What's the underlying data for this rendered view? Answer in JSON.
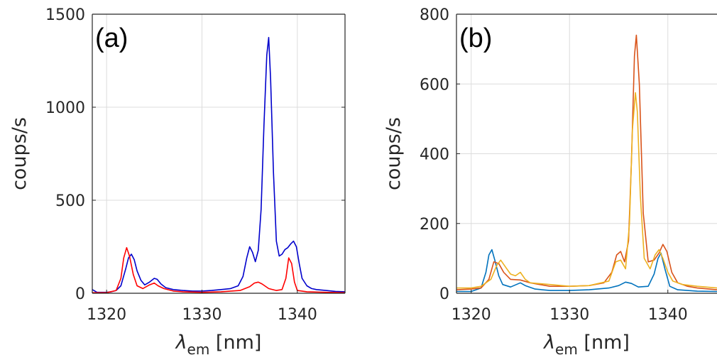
{
  "chart_data": [
    {
      "type": "line",
      "panel_label": "(a)",
      "xlabel_symbol": "λ",
      "xlabel_subscript": "em",
      "xlabel_unit": "[nm]",
      "ylabel": "coups/s",
      "xlim": [
        1318.5,
        1345
      ],
      "ylim": [
        0,
        1500
      ],
      "xticks": [
        1320,
        1330,
        1340
      ],
      "yticks": [
        0,
        500,
        1000,
        1500
      ],
      "grid": true,
      "series": [
        {
          "color": "#0000cc",
          "x": [
            1318.5,
            1319,
            1320,
            1320.5,
            1321,
            1321.5,
            1322,
            1322.3,
            1322.6,
            1322.9,
            1323.2,
            1323.6,
            1324,
            1324.5,
            1325,
            1325.3,
            1325.7,
            1326.2,
            1327,
            1328,
            1329,
            1330,
            1331,
            1332,
            1333,
            1333.8,
            1334.3,
            1334.7,
            1335,
            1335.3,
            1335.6,
            1335.9,
            1336.2,
            1336.5,
            1336.8,
            1337,
            1337.2,
            1337.5,
            1337.8,
            1338.1,
            1338.4,
            1338.7,
            1339,
            1339.3,
            1339.6,
            1339.9,
            1340.2,
            1340.5,
            1341,
            1341.5,
            1342,
            1343,
            1344,
            1345
          ],
          "y": [
            20,
            5,
            5,
            8,
            15,
            40,
            130,
            190,
            210,
            180,
            120,
            70,
            45,
            60,
            80,
            75,
            50,
            30,
            20,
            15,
            12,
            12,
            15,
            20,
            25,
            40,
            90,
            190,
            250,
            220,
            170,
            230,
            450,
            900,
            1280,
            1375,
            1150,
            650,
            280,
            200,
            210,
            235,
            245,
            265,
            280,
            250,
            160,
            80,
            40,
            25,
            20,
            15,
            10,
            8
          ]
        },
        {
          "color": "#ff0000",
          "x": [
            1318.5,
            1320,
            1321,
            1321.5,
            1321.8,
            1322.1,
            1322.4,
            1322.8,
            1323.2,
            1323.8,
            1324.5,
            1325,
            1325.4,
            1326,
            1327,
            1328,
            1330,
            1332,
            1334,
            1335,
            1335.5,
            1335.9,
            1336.3,
            1337,
            1337.8,
            1338.4,
            1338.8,
            1339.1,
            1339.4,
            1339.7,
            1340,
            1341,
            1343,
            1345
          ],
          "y": [
            3,
            3,
            15,
            80,
            190,
            245,
            200,
            100,
            40,
            25,
            45,
            55,
            40,
            25,
            12,
            8,
            5,
            8,
            15,
            35,
            55,
            60,
            50,
            25,
            15,
            20,
            80,
            190,
            160,
            60,
            15,
            8,
            5,
            3
          ]
        }
      ]
    },
    {
      "type": "line",
      "panel_label": "(b)",
      "xlabel_symbol": "λ",
      "xlabel_subscript": "em",
      "xlabel_unit": "[nm]",
      "ylabel": "coups/s",
      "xlim": [
        1318.5,
        1345
      ],
      "ylim": [
        0,
        800
      ],
      "xticks": [
        1320,
        1330,
        1340
      ],
      "yticks": [
        0,
        200,
        400,
        600,
        800
      ],
      "grid": true,
      "series": [
        {
          "color": "#0072bd",
          "x": [
            1318.5,
            1320,
            1321,
            1321.5,
            1321.8,
            1322.1,
            1322.4,
            1322.8,
            1323.2,
            1324,
            1325,
            1325.5,
            1326.5,
            1328,
            1330,
            1332,
            1334,
            1335,
            1335.7,
            1336.3,
            1337,
            1338,
            1338.6,
            1339,
            1339.3,
            1339.7,
            1340.2,
            1341,
            1343,
            1345
          ],
          "y": [
            5,
            5,
            15,
            60,
            110,
            125,
            95,
            50,
            25,
            18,
            30,
            22,
            12,
            8,
            8,
            10,
            15,
            22,
            32,
            28,
            18,
            20,
            55,
            100,
            115,
            70,
            20,
            10,
            6,
            5
          ]
        },
        {
          "color": "#d95319",
          "x": [
            1318.5,
            1320,
            1321,
            1321.8,
            1322.3,
            1322.8,
            1323.3,
            1324,
            1325,
            1326,
            1328,
            1330,
            1332,
            1333.5,
            1334.3,
            1334.8,
            1335.2,
            1335.6,
            1336,
            1336.3,
            1336.6,
            1336.8,
            1337.1,
            1337.5,
            1338,
            1338.6,
            1339.1,
            1339.5,
            1339.9,
            1340.4,
            1341,
            1342,
            1343,
            1345
          ],
          "y": [
            10,
            12,
            15,
            40,
            90,
            85,
            60,
            40,
            38,
            30,
            20,
            20,
            22,
            30,
            60,
            110,
            120,
            90,
            150,
            380,
            680,
            740,
            600,
            230,
            90,
            95,
            115,
            140,
            120,
            60,
            30,
            20,
            15,
            10
          ]
        },
        {
          "color": "#edb120",
          "x": [
            1318.5,
            1320,
            1321,
            1322,
            1322.6,
            1323,
            1323.5,
            1324,
            1324.5,
            1325,
            1325.5,
            1326,
            1328,
            1330,
            1332,
            1334,
            1334.7,
            1335.2,
            1335.7,
            1336.1,
            1336.4,
            1336.7,
            1336.9,
            1337.2,
            1337.6,
            1338.2,
            1338.7,
            1339.1,
            1339.5,
            1340,
            1340.5,
            1341.5,
            1343,
            1345
          ],
          "y": [
            15,
            15,
            20,
            40,
            80,
            95,
            75,
            55,
            50,
            60,
            40,
            30,
            25,
            20,
            22,
            35,
            90,
            95,
            70,
            200,
            470,
            575,
            520,
            280,
            100,
            70,
            110,
            125,
            100,
            60,
            35,
            25,
            20,
            15
          ]
        }
      ]
    }
  ]
}
